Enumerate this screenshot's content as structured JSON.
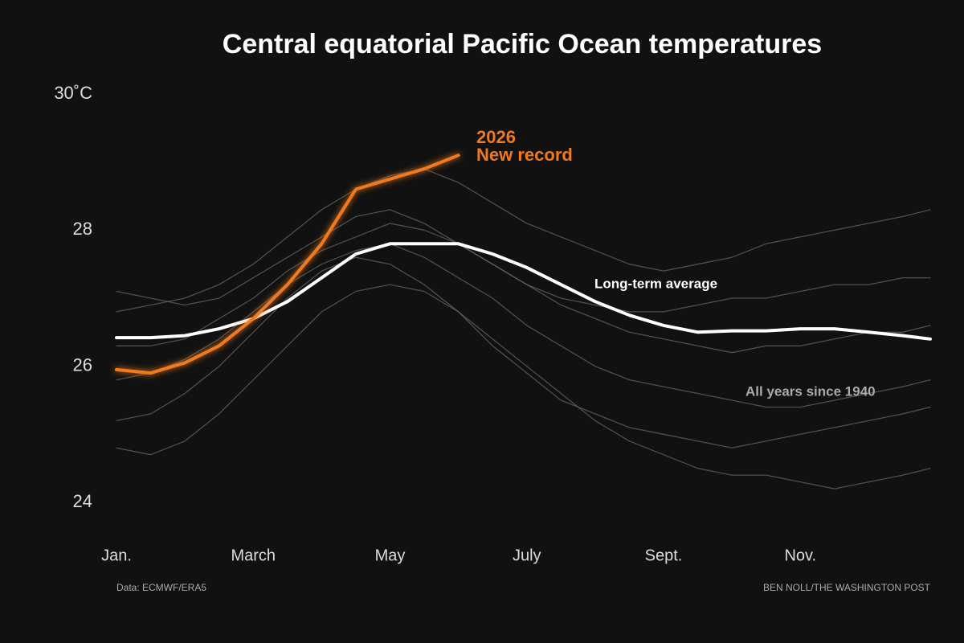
{
  "chart_data": {
    "type": "line",
    "title": "Central equatorial Pacific Ocean temperatures",
    "x": [
      0,
      0.5,
      1,
      1.5,
      2,
      2.5,
      3,
      3.5,
      4,
      4.5,
      5,
      5.5,
      6,
      6.5,
      7,
      7.5,
      8,
      8.5,
      9,
      9.5,
      10,
      10.5,
      11,
      11.5,
      11.9
    ],
    "xlim": [
      0,
      11.9
    ],
    "xticks": [
      {
        "value": 0,
        "label": "Jan."
      },
      {
        "value": 2,
        "label": "March"
      },
      {
        "value": 4,
        "label": "May"
      },
      {
        "value": 6,
        "label": "July"
      },
      {
        "value": 8,
        "label": "Sept."
      },
      {
        "value": 10,
        "label": "Nov."
      }
    ],
    "ylim": [
      24,
      30
    ],
    "yticks": [
      {
        "value": 30,
        "label": "30˚C"
      },
      28,
      26,
      24
    ],
    "grid": false,
    "series": [
      {
        "color": "#6a6a6a",
        "values": [
          26.8,
          26.9,
          27.0,
          27.2,
          27.5,
          27.9,
          28.3,
          28.6,
          28.8,
          28.9,
          28.7,
          28.4,
          28.1,
          27.9,
          27.7,
          27.5,
          27.4,
          27.5,
          27.6,
          27.8,
          27.9,
          28.0,
          28.1,
          28.2,
          28.3
        ]
      },
      {
        "color": "#6a6a6a",
        "values": [
          24.8,
          24.7,
          24.9,
          25.3,
          25.8,
          26.3,
          26.8,
          27.1,
          27.2,
          27.1,
          26.8,
          26.4,
          26.0,
          25.6,
          25.2,
          24.9,
          24.7,
          24.5,
          24.4,
          24.4,
          24.3,
          24.2,
          24.3,
          24.4,
          24.5
        ]
      },
      {
        "color": "#6a6a6a",
        "values": [
          25.8,
          25.9,
          26.1,
          26.4,
          26.8,
          27.2,
          27.5,
          27.7,
          27.8,
          27.6,
          27.3,
          27.0,
          26.6,
          26.3,
          26.0,
          25.8,
          25.7,
          25.6,
          25.5,
          25.4,
          25.4,
          25.5,
          25.6,
          25.7,
          25.8
        ]
      },
      {
        "color": "#6a6a6a",
        "values": [
          27.1,
          27.0,
          26.9,
          27.0,
          27.3,
          27.6,
          27.9,
          28.2,
          28.3,
          28.1,
          27.8,
          27.5,
          27.2,
          27.0,
          26.9,
          26.8,
          26.8,
          26.9,
          27.0,
          27.0,
          27.1,
          27.2,
          27.2,
          27.3,
          27.3
        ]
      },
      {
        "color": "#6a6a6a",
        "values": [
          25.2,
          25.3,
          25.6,
          26.0,
          26.5,
          27.0,
          27.4,
          27.6,
          27.5,
          27.2,
          26.8,
          26.3,
          25.9,
          25.5,
          25.3,
          25.1,
          25.0,
          24.9,
          24.8,
          24.9,
          25.0,
          25.1,
          25.2,
          25.3,
          25.4
        ]
      },
      {
        "color": "#6a6a6a",
        "values": [
          26.3,
          26.3,
          26.4,
          26.7,
          27.0,
          27.4,
          27.7,
          27.9,
          28.1,
          28.0,
          27.8,
          27.5,
          27.2,
          26.9,
          26.7,
          26.5,
          26.4,
          26.3,
          26.2,
          26.3,
          26.3,
          26.4,
          26.5,
          26.5,
          26.6
        ]
      },
      {
        "name": "Long-term average",
        "color": "#ffffff",
        "values": [
          26.42,
          26.42,
          26.45,
          26.55,
          26.7,
          26.95,
          27.3,
          27.65,
          27.8,
          27.8,
          27.8,
          27.65,
          27.45,
          27.2,
          26.95,
          26.75,
          26.6,
          26.5,
          26.52,
          26.52,
          26.55,
          26.55,
          26.5,
          26.45,
          26.4
        ]
      },
      {
        "name": "2026",
        "color": "#f07a1a",
        "values": [
          25.95,
          25.9,
          26.05,
          26.3,
          26.7,
          27.2,
          27.8,
          28.6,
          28.75,
          28.9,
          29.1,
          null,
          null,
          null,
          null,
          null,
          null,
          null,
          null,
          null,
          null,
          null,
          null,
          null,
          null
        ]
      }
    ],
    "annotations": [
      "New record",
      "All years since 1940"
    ],
    "source": "Data: ECMWF/ERA5",
    "credit": "BEN NOLL/THE WASHINGTON POST"
  }
}
